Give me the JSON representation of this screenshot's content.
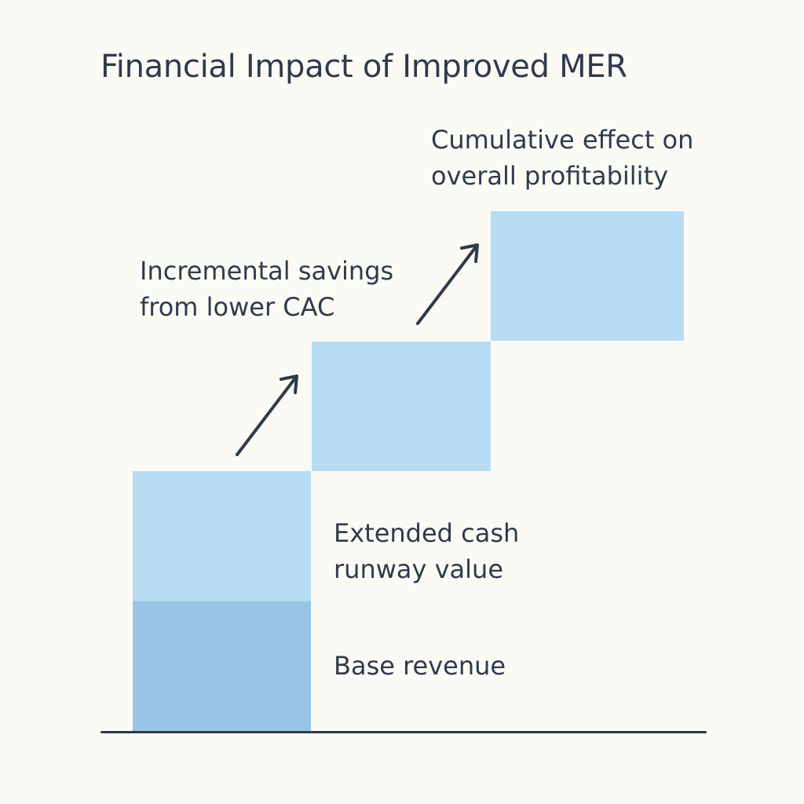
{
  "title": "Financial Impact of Improved MER",
  "labels": {
    "cumulative": [
      "Cumulative effect on",
      "overall profitability"
    ],
    "incremental": [
      "Incremental savings",
      "from lower CAC"
    ],
    "extended": [
      "Extended cash",
      "runway value"
    ],
    "base": [
      "Base revenue"
    ]
  },
  "colors": {
    "block_light": "#b8dcf3",
    "block_dark": "#98c5e6",
    "text": "#2f3b4b",
    "background": "#fcfaf5"
  }
}
